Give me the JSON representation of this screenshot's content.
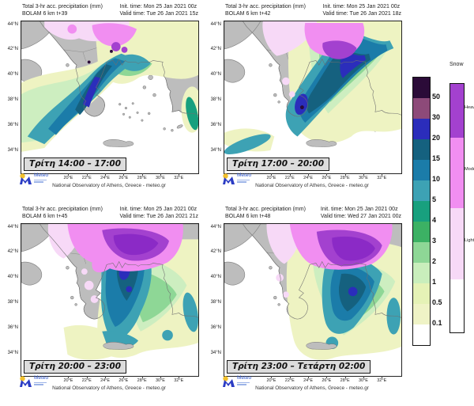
{
  "shared": {
    "title": "Total 3-hr acc. precipitation (mm)",
    "init_time": "Init. time: Mon 25 Jan 2021 00z",
    "attribution": "National Observatory of Athens, Greece - meteo.gr",
    "logo_text": "Meteo"
  },
  "panels": [
    {
      "model": "BOLAM 6 km t+39",
      "valid_time": "Valid time: Tue 26 Jan 2021 15z",
      "time_label": "Τρίτη 14:00 – 17:00"
    },
    {
      "model": "BOLAM 6 km t+42",
      "valid_time": "Valid time: Tue 26 Jan 2021 18z",
      "time_label": "Τρίτη 17:00 – 20:00"
    },
    {
      "model": "BOLAM 6 km t+45",
      "valid_time": "Valid time: Tue 26 Jan 2021 21z",
      "time_label": "Τρίτη 20:00 – 23:00"
    },
    {
      "model": "BOLAM 6 km t+48",
      "valid_time": "Valid time: Wed 27 Jan 2021 00z",
      "time_label": "Τρίτη 23:00 – Τετάρτη 02:00"
    }
  ],
  "axes": {
    "lat": [
      "44°N",
      "42°N",
      "40°N",
      "38°N",
      "36°N",
      "34°N"
    ],
    "lon": [
      "20°E",
      "22°E",
      "24°E",
      "26°E",
      "28°E",
      "30°E",
      "32°E"
    ]
  },
  "legend": {
    "levels": [
      "50",
      "30",
      "20",
      "15",
      "10",
      "5",
      "4",
      "3",
      "2",
      "1",
      "0.5",
      "0.1"
    ],
    "colors": [
      "#2b0b38",
      "#8d4a79",
      "#2b2dbb",
      "#15617f",
      "#1b7ca9",
      "#3da2b4",
      "#18a07e",
      "#3cb164",
      "#8ed796",
      "#c9eebc",
      "#e5f2b6",
      "#eff3c6",
      "#ffffff"
    ],
    "snow_title": "Snow",
    "snow_colors": [
      "#a341cf",
      "#f18ef1",
      "#f7d9f7",
      "#ffffff"
    ],
    "snow_heights": [
      68,
      89,
      90,
      67
    ],
    "snow_labels": [
      "Heavy",
      "Moderate",
      "Light"
    ],
    "snow_label_tops": [
      28,
      106,
      196
    ]
  }
}
